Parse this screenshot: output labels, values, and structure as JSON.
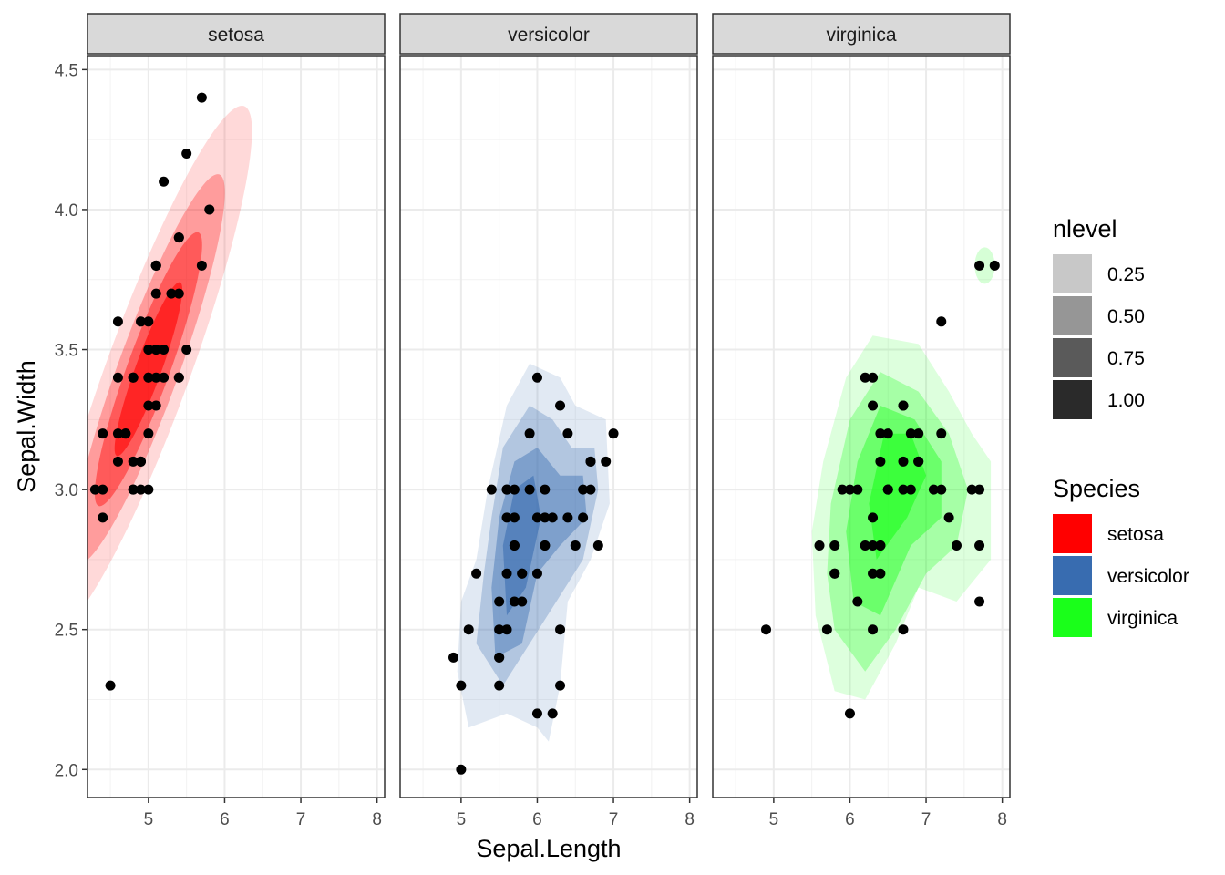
{
  "chart_data": {
    "type": "scatter",
    "xlabel": "Sepal.Length",
    "ylabel": "Sepal.Width",
    "xlim": [
      4.2,
      8.1
    ],
    "ylim": [
      1.9,
      4.55
    ],
    "x_ticks": [
      5,
      6,
      7,
      8
    ],
    "y_ticks": [
      2.0,
      2.5,
      3.0,
      3.5,
      4.0,
      4.5
    ],
    "y_tick_labels": [
      "2.0",
      "2.5",
      "3.0",
      "3.5",
      "4.0",
      "4.5"
    ],
    "grid": true,
    "overlay": "2d density contour fill (nlevel)",
    "facets": [
      "setosa",
      "versicolor",
      "virginica"
    ],
    "colors": {
      "setosa": "#ff0000",
      "versicolor": "#386cb0",
      "virginica": "#1aff1a",
      "points": "#000000",
      "strip": "#d9d9d9",
      "grid": "#ebebeb"
    },
    "series": [
      {
        "name": "setosa",
        "points": [
          [
            5.1,
            3.5
          ],
          [
            4.9,
            3.0
          ],
          [
            4.7,
            3.2
          ],
          [
            4.6,
            3.1
          ],
          [
            5.0,
            3.6
          ],
          [
            5.4,
            3.9
          ],
          [
            4.6,
            3.4
          ],
          [
            5.0,
            3.4
          ],
          [
            4.4,
            2.9
          ],
          [
            4.9,
            3.1
          ],
          [
            5.4,
            3.7
          ],
          [
            4.8,
            3.4
          ],
          [
            4.8,
            3.0
          ],
          [
            4.3,
            3.0
          ],
          [
            5.8,
            4.0
          ],
          [
            5.7,
            4.4
          ],
          [
            5.4,
            3.9
          ],
          [
            5.1,
            3.5
          ],
          [
            5.7,
            3.8
          ],
          [
            5.1,
            3.8
          ],
          [
            5.4,
            3.4
          ],
          [
            5.1,
            3.7
          ],
          [
            4.6,
            3.6
          ],
          [
            5.1,
            3.3
          ],
          [
            4.8,
            3.4
          ],
          [
            5.0,
            3.0
          ],
          [
            5.0,
            3.4
          ],
          [
            5.2,
            3.5
          ],
          [
            5.2,
            3.4
          ],
          [
            4.7,
            3.2
          ],
          [
            4.8,
            3.1
          ],
          [
            5.4,
            3.4
          ],
          [
            5.2,
            4.1
          ],
          [
            5.5,
            4.2
          ],
          [
            4.9,
            3.1
          ],
          [
            5.0,
            3.2
          ],
          [
            5.5,
            3.5
          ],
          [
            4.9,
            3.6
          ],
          [
            4.4,
            3.0
          ],
          [
            5.1,
            3.4
          ],
          [
            5.0,
            3.5
          ],
          [
            4.5,
            2.3
          ],
          [
            4.4,
            3.2
          ],
          [
            5.0,
            3.5
          ],
          [
            5.1,
            3.8
          ],
          [
            4.8,
            3.0
          ],
          [
            5.1,
            3.8
          ],
          [
            4.6,
            3.2
          ],
          [
            5.3,
            3.7
          ],
          [
            5.0,
            3.3
          ]
        ]
      },
      {
        "name": "versicolor",
        "points": [
          [
            7.0,
            3.2
          ],
          [
            6.4,
            3.2
          ],
          [
            6.9,
            3.1
          ],
          [
            5.5,
            2.3
          ],
          [
            6.5,
            2.8
          ],
          [
            5.7,
            2.8
          ],
          [
            6.3,
            3.3
          ],
          [
            4.9,
            2.4
          ],
          [
            6.6,
            2.9
          ],
          [
            5.2,
            2.7
          ],
          [
            5.0,
            2.0
          ],
          [
            5.9,
            3.0
          ],
          [
            6.0,
            2.2
          ],
          [
            6.1,
            2.9
          ],
          [
            5.6,
            2.9
          ],
          [
            6.7,
            3.1
          ],
          [
            5.6,
            3.0
          ],
          [
            5.8,
            2.7
          ],
          [
            6.2,
            2.2
          ],
          [
            5.6,
            2.5
          ],
          [
            5.9,
            3.2
          ],
          [
            6.1,
            2.8
          ],
          [
            6.3,
            2.5
          ],
          [
            6.1,
            2.8
          ],
          [
            6.4,
            2.9
          ],
          [
            6.6,
            3.0
          ],
          [
            6.8,
            2.8
          ],
          [
            6.7,
            3.0
          ],
          [
            6.0,
            2.9
          ],
          [
            5.7,
            2.6
          ],
          [
            5.5,
            2.4
          ],
          [
            5.5,
            2.4
          ],
          [
            5.8,
            2.7
          ],
          [
            6.0,
            2.7
          ],
          [
            5.4,
            3.0
          ],
          [
            6.0,
            3.4
          ],
          [
            6.7,
            3.1
          ],
          [
            6.3,
            2.3
          ],
          [
            5.6,
            3.0
          ],
          [
            5.5,
            2.5
          ],
          [
            5.5,
            2.6
          ],
          [
            6.1,
            3.0
          ],
          [
            5.8,
            2.6
          ],
          [
            5.0,
            2.3
          ],
          [
            5.6,
            2.7
          ],
          [
            5.7,
            3.0
          ],
          [
            5.7,
            2.9
          ],
          [
            6.2,
            2.9
          ],
          [
            5.1,
            2.5
          ],
          [
            5.7,
            2.8
          ]
        ]
      },
      {
        "name": "virginica",
        "points": [
          [
            6.3,
            3.3
          ],
          [
            5.8,
            2.7
          ],
          [
            7.1,
            3.0
          ],
          [
            6.3,
            2.9
          ],
          [
            6.5,
            3.0
          ],
          [
            7.6,
            3.0
          ],
          [
            4.9,
            2.5
          ],
          [
            7.3,
            2.9
          ],
          [
            6.7,
            2.5
          ],
          [
            7.2,
            3.6
          ],
          [
            6.5,
            3.2
          ],
          [
            6.4,
            2.7
          ],
          [
            6.8,
            3.0
          ],
          [
            5.7,
            2.5
          ],
          [
            5.8,
            2.8
          ],
          [
            6.4,
            3.2
          ],
          [
            6.5,
            3.0
          ],
          [
            7.7,
            3.8
          ],
          [
            7.7,
            2.6
          ],
          [
            6.0,
            2.2
          ],
          [
            6.9,
            3.2
          ],
          [
            5.6,
            2.8
          ],
          [
            7.7,
            2.8
          ],
          [
            6.3,
            2.7
          ],
          [
            6.7,
            3.3
          ],
          [
            7.2,
            3.2
          ],
          [
            6.2,
            2.8
          ],
          [
            6.1,
            3.0
          ],
          [
            6.4,
            2.8
          ],
          [
            7.2,
            3.0
          ],
          [
            7.4,
            2.8
          ],
          [
            7.9,
            3.8
          ],
          [
            6.4,
            2.8
          ],
          [
            6.3,
            2.8
          ],
          [
            6.1,
            2.6
          ],
          [
            7.7,
            3.0
          ],
          [
            6.3,
            3.4
          ],
          [
            6.4,
            3.1
          ],
          [
            6.0,
            3.0
          ],
          [
            6.9,
            3.1
          ],
          [
            6.7,
            3.1
          ],
          [
            6.9,
            3.1
          ],
          [
            5.8,
            2.7
          ],
          [
            6.8,
            3.2
          ],
          [
            6.7,
            3.3
          ],
          [
            6.7,
            3.0
          ],
          [
            6.3,
            2.5
          ],
          [
            6.5,
            3.0
          ],
          [
            6.2,
            3.4
          ],
          [
            5.9,
            3.0
          ]
        ]
      }
    ],
    "density_contours": {
      "setosa": {
        "center": [
          5.0,
          3.43
        ],
        "rx": [
          0.17,
          0.28,
          0.4,
          0.55
        ],
        "ry": [
          0.33,
          0.52,
          0.74,
          1.0
        ],
        "tilt_deg": 20,
        "levels": [
          1.0,
          0.75,
          0.5,
          0.25
        ]
      },
      "versicolor": {
        "outer_polygon": [
          [
            4.95,
            2.35
          ],
          [
            5.1,
            2.15
          ],
          [
            5.6,
            2.2
          ],
          [
            6.0,
            2.15
          ],
          [
            6.15,
            2.1
          ],
          [
            6.3,
            2.3
          ],
          [
            6.4,
            2.6
          ],
          [
            6.7,
            2.75
          ],
          [
            6.95,
            2.95
          ],
          [
            6.9,
            3.25
          ],
          [
            6.5,
            3.3
          ],
          [
            6.3,
            3.4
          ],
          [
            5.9,
            3.45
          ],
          [
            5.6,
            3.3
          ],
          [
            5.35,
            3.0
          ],
          [
            5.2,
            2.75
          ],
          [
            5.0,
            2.6
          ]
        ],
        "mid_polygon": [
          [
            5.2,
            2.45
          ],
          [
            5.55,
            2.3
          ],
          [
            5.9,
            2.45
          ],
          [
            6.25,
            2.6
          ],
          [
            6.6,
            2.75
          ],
          [
            6.8,
            3.0
          ],
          [
            6.75,
            3.15
          ],
          [
            6.45,
            3.15
          ],
          [
            6.2,
            3.25
          ],
          [
            5.9,
            3.3
          ],
          [
            5.55,
            3.15
          ],
          [
            5.4,
            2.9
          ],
          [
            5.3,
            2.7
          ]
        ],
        "inner_polygon": [
          [
            5.45,
            2.4
          ],
          [
            5.8,
            2.45
          ],
          [
            6.0,
            2.7
          ],
          [
            6.3,
            2.8
          ],
          [
            6.65,
            2.9
          ],
          [
            6.6,
            3.05
          ],
          [
            6.3,
            3.05
          ],
          [
            6.0,
            3.15
          ],
          [
            5.7,
            3.1
          ],
          [
            5.5,
            2.9
          ],
          [
            5.4,
            2.65
          ]
        ],
        "core_polygon": [
          [
            5.6,
            2.55
          ],
          [
            5.85,
            2.65
          ],
          [
            6.05,
            2.9
          ],
          [
            5.95,
            3.05
          ],
          [
            5.7,
            3.0
          ],
          [
            5.55,
            2.8
          ]
        ]
      },
      "virginica": {
        "outer_polygon": [
          [
            5.55,
            2.55
          ],
          [
            5.8,
            2.28
          ],
          [
            6.2,
            2.25
          ],
          [
            6.6,
            2.45
          ],
          [
            6.9,
            2.65
          ],
          [
            7.4,
            2.6
          ],
          [
            7.85,
            2.75
          ],
          [
            7.85,
            3.1
          ],
          [
            7.6,
            3.2
          ],
          [
            7.3,
            3.35
          ],
          [
            6.9,
            3.52
          ],
          [
            6.3,
            3.55
          ],
          [
            5.95,
            3.4
          ],
          [
            5.65,
            3.1
          ],
          [
            5.5,
            2.85
          ]
        ],
        "mid_polygon": [
          [
            5.8,
            2.5
          ],
          [
            6.2,
            2.35
          ],
          [
            6.6,
            2.5
          ],
          [
            7.0,
            2.7
          ],
          [
            7.4,
            2.8
          ],
          [
            7.55,
            3.0
          ],
          [
            7.3,
            3.2
          ],
          [
            6.9,
            3.35
          ],
          [
            6.4,
            3.42
          ],
          [
            6.0,
            3.25
          ],
          [
            5.75,
            2.95
          ],
          [
            5.7,
            2.7
          ]
        ],
        "inner_polygon": [
          [
            6.05,
            2.6
          ],
          [
            6.4,
            2.55
          ],
          [
            6.8,
            2.8
          ],
          [
            7.2,
            2.9
          ],
          [
            7.2,
            3.1
          ],
          [
            6.85,
            3.25
          ],
          [
            6.4,
            3.3
          ],
          [
            6.1,
            3.1
          ],
          [
            5.95,
            2.85
          ]
        ],
        "core_polygon": [
          [
            6.35,
            2.75
          ],
          [
            6.75,
            2.9
          ],
          [
            7.0,
            3.05
          ],
          [
            6.8,
            3.2
          ],
          [
            6.45,
            3.2
          ],
          [
            6.25,
            2.95
          ]
        ],
        "island_center": [
          7.77,
          3.8
        ]
      }
    }
  },
  "legend": {
    "nlevel_title": "nlevel",
    "nlevel_items": [
      {
        "label": "0.25",
        "color": "#c8c8c8"
      },
      {
        "label": "0.50",
        "color": "#969696"
      },
      {
        "label": "0.75",
        "color": "#5a5a5a"
      },
      {
        "label": "1.00",
        "color": "#2a2a2a"
      }
    ],
    "species_title": "Species",
    "species_items": [
      {
        "label": "setosa",
        "color": "#ff0000"
      },
      {
        "label": "versicolor",
        "color": "#386cb0"
      },
      {
        "label": "virginica",
        "color": "#1aff1a"
      }
    ]
  }
}
